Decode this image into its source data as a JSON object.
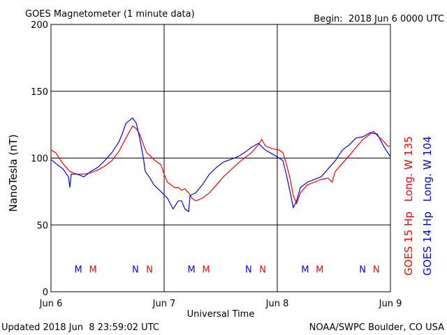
{
  "chart_data": {
    "type": "line",
    "title": "GOES Magnetometer (1 minute data)",
    "begin": "Begin:  2018 Jun 6 0000 UTC",
    "ylabel": "NanoTesla (nT)",
    "xlabel": "Universal Time",
    "footer_left": "Updated 2018 Jun  8 23:59:02 UTC",
    "footer_right": "NOAA/SWPC Boulder, CO USA",
    "xlim": [
      0,
      72
    ],
    "xticks": [
      {
        "value": 0,
        "label": "Jun 6"
      },
      {
        "value": 24,
        "label": "Jun 7"
      },
      {
        "value": 48,
        "label": "Jun 8"
      },
      {
        "value": 72,
        "label": "Jun 9"
      }
    ],
    "ylim": [
      0,
      200
    ],
    "yticks": [
      0,
      50,
      100,
      150,
      200
    ],
    "grid": true,
    "series": [
      {
        "name": "GOES 15 Hp",
        "longitude": "Long. W 135",
        "color": "#ff0000",
        "x": [
          0,
          1.0,
          2.5,
          4.0,
          5.5,
          7.0,
          8.4,
          9.9,
          11.4,
          12.9,
          14.4,
          15.9,
          17.3,
          18.1,
          18.8,
          19.6,
          20.3,
          21.0,
          21.8,
          23.3,
          24.0,
          24.7,
          26.2,
          27.0,
          27.7,
          28.4,
          29.2,
          29.9,
          30.7,
          32.1,
          33.6,
          35.1,
          36.6,
          38.1,
          39.6,
          41.0,
          42.5,
          44.0,
          44.7,
          45.5,
          47.0,
          48.4,
          49.2,
          49.9,
          50.7,
          51.4,
          52.1,
          52.9,
          54.4,
          55.9,
          57.3,
          58.8,
          59.6,
          60.3,
          61.8,
          63.3,
          64.7,
          66.2,
          67.7,
          68.4,
          69.2,
          70.7,
          71.4,
          72
        ],
        "values": [
          106,
          104,
          96,
          90,
          88,
          88,
          89,
          91,
          94,
          98,
          105,
          115,
          124,
          122,
          118,
          110,
          104,
          102,
          99,
          95,
          88,
          82,
          78,
          78,
          76,
          77,
          74,
          70,
          68,
          70,
          74,
          80,
          86,
          91,
          96,
          100,
          104,
          110,
          114,
          109,
          107,
          106,
          104,
          96,
          85,
          72,
          66,
          74,
          80,
          82,
          84,
          85,
          82,
          90,
          96,
          102,
          108,
          114,
          118,
          120,
          117,
          112,
          109,
          109
        ]
      },
      {
        "name": "GOES 14 Hp",
        "longitude": "Long. W 104",
        "color": "#0000ff",
        "x": [
          0,
          1.0,
          2.5,
          3.7,
          4.0,
          4.3,
          5.5,
          7.0,
          8.4,
          9.9,
          11.4,
          12.9,
          14.4,
          15.1,
          15.9,
          17.3,
          18.1,
          18.8,
          19.6,
          20.0,
          21.0,
          21.8,
          23.3,
          24.7,
          25.9,
          27.0,
          27.7,
          28.4,
          29.2,
          29.5,
          30.7,
          32.1,
          33.6,
          35.1,
          36.6,
          38.1,
          39.6,
          41.0,
          42.5,
          44.0,
          45.5,
          47.0,
          48.4,
          49.2,
          49.9,
          50.7,
          51.4,
          52.1,
          52.9,
          54.4,
          55.9,
          57.3,
          58.8,
          60.3,
          61.8,
          63.3,
          64.7,
          66.2,
          67.7,
          69.2,
          70.7,
          72
        ],
        "values": [
          99,
          96,
          92,
          86,
          78,
          88,
          88,
          86,
          90,
          93,
          98,
          104,
          112,
          118,
          126,
          130,
          126,
          115,
          100,
          90,
          85,
          80,
          75,
          70,
          62,
          68,
          68,
          62,
          60,
          72,
          74,
          80,
          88,
          93,
          97,
          99,
          101,
          104,
          108,
          111,
          106,
          103,
          100,
          98,
          88,
          75,
          63,
          68,
          78,
          82,
          84,
          86,
          92,
          98,
          106,
          110,
          115,
          116,
          119,
          118,
          108,
          101
        ]
      }
    ],
    "annotations": [
      {
        "text": "M",
        "color": "#0000ff",
        "x": [
          5.8,
          29.8,
          53.9
        ],
        "y": 17
      },
      {
        "text": "M",
        "color": "#ff0000",
        "x": [
          8.9,
          32.9,
          57.0
        ],
        "y": 17
      },
      {
        "text": "N",
        "color": "#0000ff",
        "x": [
          17.9,
          41.9,
          66.1
        ],
        "y": 17
      },
      {
        "text": "N",
        "color": "#ff0000",
        "x": [
          20.9,
          44.9,
          69.0
        ],
        "y": 17
      }
    ]
  }
}
